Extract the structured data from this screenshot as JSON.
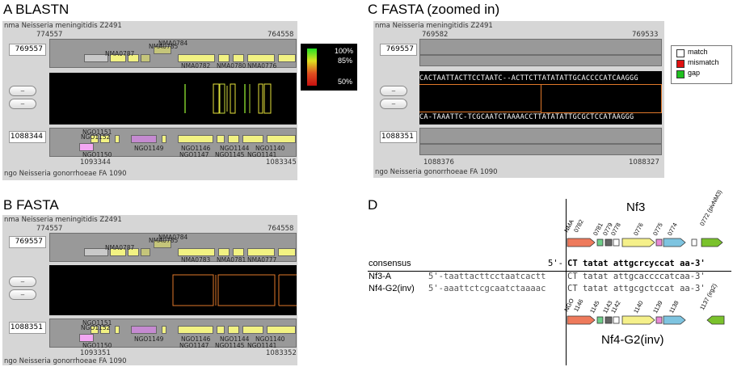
{
  "panels": {
    "a": {
      "letter": "A",
      "title": "BLASTN",
      "top_org": "nma Neisseria meningitidis Z2491",
      "top_left": "774557",
      "top_right": "764558",
      "box1": "769557",
      "box2": "1088344",
      "bottom_left": "1093344",
      "bottom_right": "1083345",
      "bottom_org": "ngo Neisseria gonorrhoeae FA 1090"
    },
    "b": {
      "letter": "B",
      "title": "FASTA",
      "top_org": "nma Neisseria meningitidis Z2491",
      "top_left": "774557",
      "top_right": "764558",
      "box1": "769557",
      "box2": "1088351",
      "bottom_left": "1093351",
      "bottom_right": "1083352",
      "bottom_org": "ngo Neisseria gonorrhoeae FA 1090"
    },
    "c": {
      "letter": "C",
      "title": "FASTA (zoomed in)",
      "top_org": "nma Neisseria meningitidis Z2491",
      "top_left": "769582",
      "top_right": "769533",
      "box1": "769557",
      "box2": "1088351",
      "bottom_left": "1088376",
      "bottom_right": "1088327",
      "bottom_org": "ngo Neisseria gonorrhoeae FA 1090",
      "seq_top": "CACTAATTACTTCCTAATC--ACTTCTTATATATTGCACCCCATCAAGGG",
      "seq_bottom": "CA-TAAATTC-TCGCAATCTAAAACCTTATATATTGCGCTCCATAAGGG"
    },
    "d": {
      "letter": "D"
    }
  },
  "nma_genes_top": [
    "NMA0784"
  ],
  "nma_genes_row": [
    "NMA0787",
    "NMA0785",
    "NMA0782",
    "NMA0780",
    "NMA0776"
  ],
  "nma_genes_bot": [
    "NMA0783",
    "NMA0781",
    "NMA0777"
  ],
  "ngo_genes_top": [
    "NGO1151"
  ],
  "ngo_genes_row": [
    "NGO1152",
    "NGO1149",
    "NGO1146",
    "NGO1144",
    "NGO1140"
  ],
  "ngo_genes_bot": [
    "NGO1150",
    "NGO1147",
    "NGO1145",
    "NGO1141"
  ],
  "legend_identity": {
    "high": "100%",
    "mid": "85%",
    "low": "50%"
  },
  "legend_match": {
    "match": "match",
    "mismatch": "mismatch",
    "gap": "gap"
  },
  "buttons": {
    "minus": "–"
  },
  "panel_d": {
    "nf3_title": "Nf3",
    "nf4_title": "Nf4-G2(inv)",
    "rows": [
      {
        "label": "consensus",
        "left": "5'-",
        "seq": "CT tatat attgcrcyccat aa-3'"
      },
      {
        "label": "Nf3-A",
        "left": "5'-taattacttcctaatcactt",
        "seq": "CT tatat attgcaccccatcaa-3'"
      },
      {
        "label": "Nf4-G2(inv)",
        "left": "5'-aaattctcgcaatctaaaac",
        "seq": "CT tatat attgcgctccat aa-3'"
      }
    ],
    "nf3_genes": [
      "NMA",
      "0782",
      "0781",
      "0779",
      "0778",
      "0776",
      "0775",
      "0774",
      "0772 (pivNM3)"
    ],
    "nf4_genes": [
      "NGO",
      "1146",
      "1145",
      "1143",
      "1142",
      "1140",
      "1139",
      "1138",
      "1137 (irg2)"
    ]
  }
}
